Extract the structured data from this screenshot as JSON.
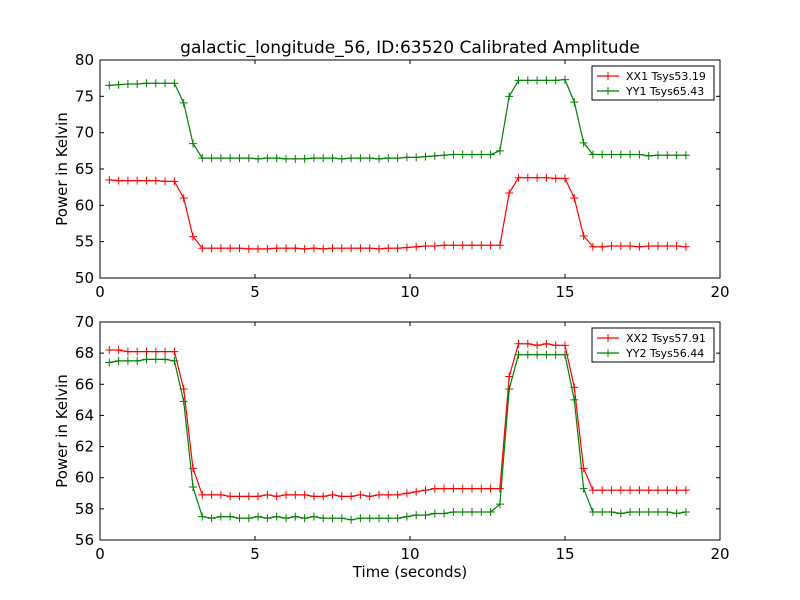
{
  "figure": {
    "title": "galactic_longitude_56, ID:63520 Calibrated Amplitude"
  },
  "chart_data": [
    {
      "type": "line",
      "xlabel": "",
      "ylabel": "Power in Kelvin",
      "xlim": [
        0,
        20
      ],
      "ylim": [
        50,
        80
      ],
      "xticks": [
        0,
        5,
        10,
        15,
        20
      ],
      "yticks": [
        50,
        55,
        60,
        65,
        70,
        75,
        80
      ],
      "grid": false,
      "legend_position": "top-right",
      "x": [
        0.3,
        0.6,
        0.9,
        1.2,
        1.5,
        1.8,
        2.1,
        2.4,
        2.7,
        3.0,
        3.3,
        3.6,
        3.9,
        4.2,
        4.5,
        4.8,
        5.1,
        5.4,
        5.7,
        6.0,
        6.3,
        6.6,
        6.9,
        7.2,
        7.5,
        7.8,
        8.1,
        8.4,
        8.7,
        9.0,
        9.3,
        9.6,
        9.9,
        10.2,
        10.5,
        10.8,
        11.1,
        11.4,
        11.7,
        12.0,
        12.3,
        12.6,
        12.9,
        13.2,
        13.5,
        13.8,
        14.1,
        14.4,
        14.7,
        15.0,
        15.3,
        15.6,
        15.9,
        16.2,
        16.5,
        16.8,
        17.1,
        17.4,
        17.7,
        18.0,
        18.3,
        18.6,
        18.9
      ],
      "series": [
        {
          "name": "XX1 Tsys53.19",
          "color": "#ff0000",
          "values": [
            63.5,
            63.4,
            63.4,
            63.4,
            63.4,
            63.4,
            63.3,
            63.3,
            61.0,
            55.7,
            54.1,
            54.1,
            54.1,
            54.1,
            54.1,
            54.0,
            54.0,
            54.0,
            54.1,
            54.1,
            54.1,
            54.0,
            54.1,
            54.0,
            54.1,
            54.1,
            54.1,
            54.1,
            54.1,
            54.0,
            54.1,
            54.1,
            54.2,
            54.3,
            54.4,
            54.4,
            54.5,
            54.5,
            54.5,
            54.5,
            54.5,
            54.5,
            54.5,
            61.7,
            63.8,
            63.8,
            63.8,
            63.8,
            63.7,
            63.7,
            61.0,
            55.8,
            54.3,
            54.3,
            54.4,
            54.4,
            54.4,
            54.3,
            54.4,
            54.4,
            54.4,
            54.4,
            54.3
          ]
        },
        {
          "name": "YY1 Tsys65.43",
          "color": "#008000",
          "values": [
            76.5,
            76.6,
            76.7,
            76.7,
            76.8,
            76.8,
            76.8,
            76.8,
            74.1,
            68.5,
            66.5,
            66.5,
            66.5,
            66.5,
            66.5,
            66.5,
            66.4,
            66.5,
            66.5,
            66.4,
            66.4,
            66.4,
            66.5,
            66.5,
            66.5,
            66.4,
            66.5,
            66.5,
            66.5,
            66.4,
            66.5,
            66.5,
            66.6,
            66.6,
            66.7,
            66.8,
            66.9,
            67.0,
            67.0,
            67.0,
            67.0,
            67.0,
            67.5,
            75.0,
            77.2,
            77.2,
            77.2,
            77.2,
            77.2,
            77.3,
            74.2,
            68.6,
            67.0,
            67.0,
            67.0,
            67.0,
            67.0,
            67.0,
            66.8,
            66.9,
            66.9,
            66.9,
            66.9
          ]
        }
      ]
    },
    {
      "type": "line",
      "xlabel": "Time (seconds)",
      "ylabel": "Power in Kelvin",
      "xlim": [
        0,
        20
      ],
      "ylim": [
        56,
        70
      ],
      "xticks": [
        0,
        5,
        10,
        15,
        20
      ],
      "yticks": [
        56,
        58,
        60,
        62,
        64,
        66,
        68,
        70
      ],
      "grid": false,
      "legend_position": "top-right",
      "x": [
        0.3,
        0.6,
        0.9,
        1.2,
        1.5,
        1.8,
        2.1,
        2.4,
        2.7,
        3.0,
        3.3,
        3.6,
        3.9,
        4.2,
        4.5,
        4.8,
        5.1,
        5.4,
        5.7,
        6.0,
        6.3,
        6.6,
        6.9,
        7.2,
        7.5,
        7.8,
        8.1,
        8.4,
        8.7,
        9.0,
        9.3,
        9.6,
        9.9,
        10.2,
        10.5,
        10.8,
        11.1,
        11.4,
        11.7,
        12.0,
        12.3,
        12.6,
        12.9,
        13.2,
        13.5,
        13.8,
        14.1,
        14.4,
        14.7,
        15.0,
        15.3,
        15.6,
        15.9,
        16.2,
        16.5,
        16.8,
        17.1,
        17.4,
        17.7,
        18.0,
        18.3,
        18.6,
        18.9
      ],
      "series": [
        {
          "name": "XX2 Tsys57.91",
          "color": "#ff0000",
          "values": [
            68.2,
            68.2,
            68.1,
            68.1,
            68.1,
            68.1,
            68.1,
            68.1,
            65.7,
            60.6,
            58.9,
            58.9,
            58.9,
            58.8,
            58.8,
            58.8,
            58.8,
            58.9,
            58.8,
            58.9,
            58.9,
            58.9,
            58.8,
            58.8,
            58.9,
            58.8,
            58.8,
            58.9,
            58.8,
            58.9,
            58.9,
            58.9,
            59.0,
            59.1,
            59.2,
            59.3,
            59.3,
            59.3,
            59.3,
            59.3,
            59.3,
            59.3,
            59.3,
            66.5,
            68.6,
            68.6,
            68.5,
            68.6,
            68.5,
            68.5,
            65.8,
            60.6,
            59.2,
            59.2,
            59.2,
            59.2,
            59.2,
            59.2,
            59.2,
            59.2,
            59.2,
            59.2,
            59.2
          ]
        },
        {
          "name": "YY2 Tsys56.44",
          "color": "#008000",
          "values": [
            67.4,
            67.5,
            67.5,
            67.5,
            67.6,
            67.6,
            67.6,
            67.5,
            64.9,
            59.4,
            57.5,
            57.4,
            57.5,
            57.5,
            57.4,
            57.4,
            57.5,
            57.4,
            57.5,
            57.4,
            57.5,
            57.4,
            57.5,
            57.4,
            57.4,
            57.4,
            57.3,
            57.4,
            57.4,
            57.4,
            57.4,
            57.4,
            57.5,
            57.6,
            57.6,
            57.7,
            57.7,
            57.8,
            57.8,
            57.8,
            57.8,
            57.8,
            58.3,
            65.7,
            67.9,
            67.9,
            67.9,
            67.9,
            67.9,
            67.9,
            65.0,
            59.3,
            57.8,
            57.8,
            57.8,
            57.7,
            57.8,
            57.8,
            57.8,
            57.8,
            57.8,
            57.7,
            57.8
          ]
        }
      ]
    }
  ]
}
